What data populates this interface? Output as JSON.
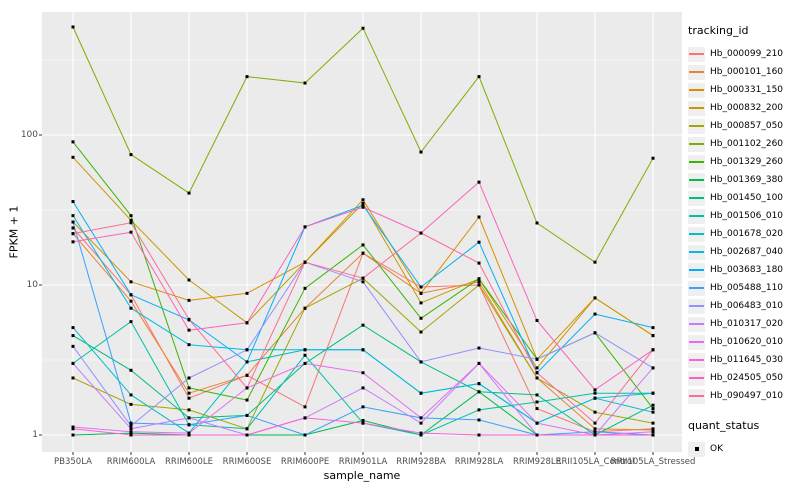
{
  "figure": {
    "y_axis_title": "FPKM + 1",
    "x_axis_title": "sample_name",
    "y_ticks": [
      "1",
      "10",
      "100"
    ],
    "legend": {
      "title": "tracking_id",
      "quant_title": "quant_status",
      "quant_item": "OK"
    },
    "colors": {
      "panel_bg": "#EBEBEB",
      "grid": "#FFFFFF",
      "tick_text": "#4D4D4D",
      "point": "#000000"
    }
  },
  "chart_data": {
    "type": "line",
    "x_scale": "categorical",
    "y_scale": "log10",
    "y_ticks": [
      1,
      10,
      100
    ],
    "ylim": [
      0.95,
      560
    ],
    "grid": "major-white-on-gray",
    "legend_position": "right",
    "point_status_label": "OK",
    "categories": [
      "PB350LA",
      "RRIM600LA",
      "RRIM600LE",
      "RRIM600SE",
      "RRIM600PE",
      "RRIM901LA",
      "RRIM928BA",
      "RRIM928LA",
      "RRIM928LE",
      "RRII105LA_Control",
      "RRII105LA_Stressed"
    ],
    "series": [
      {
        "name": "Hb_000099_210",
        "color": "#F8766D",
        "values": [
          24,
          8.6,
          1.76,
          2.5,
          1.54,
          16.3,
          9.7,
          10,
          1.5,
          1.05,
          1.1
        ]
      },
      {
        "name": "Hb_000101_160",
        "color": "#EA8331",
        "values": [
          22,
          7.8,
          1.9,
          2.5,
          7.0,
          16.3,
          8.8,
          10.5,
          2.4,
          1.1,
          1.08
        ]
      },
      {
        "name": "Hb_000331_150",
        "color": "#D89000",
        "values": [
          26.3,
          10.5,
          7.9,
          8.8,
          14.2,
          37,
          8.8,
          28.4,
          3.2,
          8.2,
          4.6
        ]
      },
      {
        "name": "Hb_000832_200",
        "color": "#C49A00",
        "values": [
          71,
          27,
          10.8,
          5.6,
          14.2,
          35,
          7.6,
          11,
          2.8,
          8.2,
          4.6
        ]
      },
      {
        "name": "Hb_000857_050",
        "color": "#A3A500",
        "values": [
          2.4,
          1.6,
          1.47,
          1.1,
          7.0,
          11.1,
          4.86,
          10,
          2.4,
          1.42,
          1.2
        ]
      },
      {
        "name": "Hb_001102_260",
        "color": "#7CAE00",
        "values": [
          525,
          74,
          41,
          245,
          222,
          515,
          77,
          245,
          25.9,
          14.2,
          70
        ]
      },
      {
        "name": "Hb_001329_260",
        "color": "#39B600",
        "values": [
          90,
          29,
          2.06,
          1.71,
          9.5,
          18.5,
          6.0,
          11,
          3.2,
          4.8,
          1.5
        ]
      },
      {
        "name": "Hb_001369_380",
        "color": "#00BB4E",
        "values": [
          1.0,
          1.03,
          1.0,
          1.0,
          1.0,
          1.25,
          1.0,
          1.94,
          1.0,
          1.0,
          1.0
        ]
      },
      {
        "name": "Hb_001450_100",
        "color": "#00BF7D",
        "values": [
          4.6,
          2.7,
          1.3,
          1.35,
          3.0,
          5.4,
          3.07,
          1.94,
          1.85,
          1.0,
          1.58
        ]
      },
      {
        "name": "Hb_001506_010",
        "color": "#00C1A3",
        "values": [
          3.0,
          5.7,
          1.17,
          1.1,
          3.4,
          1.2,
          1.0,
          1.47,
          1.66,
          1.9,
          1.9
        ]
      },
      {
        "name": "Hb_001678_020",
        "color": "#00BFC4",
        "values": [
          5.2,
          1.85,
          1.03,
          3.07,
          3.7,
          3.7,
          1.9,
          2.2,
          1.2,
          1.76,
          1.42
        ]
      },
      {
        "name": "Hb_002687_040",
        "color": "#00BAE0",
        "values": [
          29,
          7.0,
          4.0,
          3.7,
          3.7,
          3.7,
          1.9,
          2.2,
          1.2,
          1.76,
          1.9
        ]
      },
      {
        "name": "Hb_003683_180",
        "color": "#00B0F6",
        "values": [
          36,
          8.6,
          5.85,
          3.07,
          24.4,
          34,
          9.7,
          19.3,
          2.6,
          6.4,
          5.2
        ]
      },
      {
        "name": "Hb_005488_110",
        "color": "#35A2FF",
        "values": [
          26.3,
          1.2,
          1.17,
          1.35,
          1.0,
          1.54,
          1.3,
          1.26,
          1.0,
          1.05,
          1.0
        ]
      },
      {
        "name": "Hb_006483_010",
        "color": "#9590FF",
        "values": [
          3.9,
          1.15,
          2.4,
          3.7,
          14.2,
          10.5,
          3.07,
          3.8,
          3.2,
          4.8,
          2.8
        ]
      },
      {
        "name": "Hb_010317_020",
        "color": "#C77CFF",
        "values": [
          3.0,
          1.1,
          1.3,
          1.0,
          1.3,
          2.06,
          1.2,
          3.0,
          1.0,
          1.0,
          2.8
        ]
      },
      {
        "name": "Hb_010620_010",
        "color": "#E76BF3",
        "values": [
          1.13,
          1.05,
          1.03,
          2.06,
          3.0,
          2.6,
          1.3,
          3.0,
          1.2,
          1.0,
          1.05
        ]
      },
      {
        "name": "Hb_011645_030",
        "color": "#FA62DB",
        "values": [
          1.1,
          1.0,
          1.0,
          1.0,
          1.3,
          1.2,
          1.03,
          1.0,
          1.0,
          1.0,
          1.0
        ]
      },
      {
        "name": "Hb_024505_050",
        "color": "#FF62BC",
        "values": [
          19.4,
          22.5,
          5.0,
          5.6,
          24.4,
          33,
          22.2,
          48.5,
          5.8,
          2.0,
          3.7
        ]
      },
      {
        "name": "Hb_090497_010",
        "color": "#FF6A98",
        "values": [
          22,
          26,
          5.9,
          2.06,
          14.2,
          11.1,
          22.2,
          14,
          2.6,
          1.2,
          3.7
        ]
      }
    ]
  }
}
